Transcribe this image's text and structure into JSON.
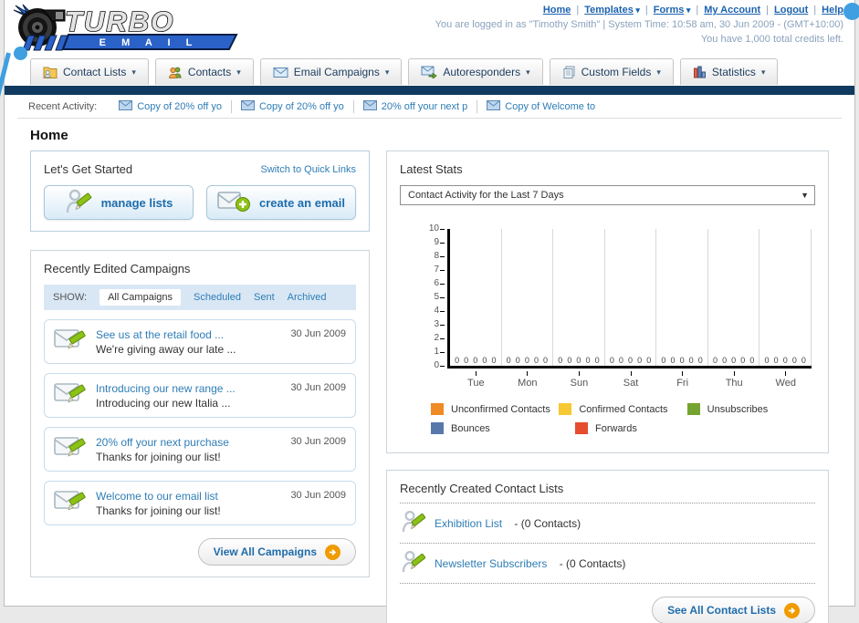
{
  "header": {
    "links": [
      {
        "label": "Home",
        "dropdown": false
      },
      {
        "label": "Templates",
        "dropdown": true
      },
      {
        "label": "Forms",
        "dropdown": true
      },
      {
        "label": "My Account",
        "dropdown": false
      },
      {
        "label": "Logout",
        "dropdown": false
      },
      {
        "label": "Help",
        "dropdown": false
      }
    ],
    "login_line1": "You are logged in as \"Timothy Smith\" | System Time: 10:58 am, 30 Jun 2009 - (GMT+10:00)",
    "login_line2": "You have 1,000 total credits left.",
    "logo_word": "TURBO",
    "logo_sub": "E M A I L"
  },
  "nav": {
    "tabs": [
      {
        "label": "Contact Lists",
        "icon": "folder-icon"
      },
      {
        "label": "Contacts",
        "icon": "contacts-icon"
      },
      {
        "label": "Email Campaigns",
        "icon": "envelope-icon"
      },
      {
        "label": "Autoresponders",
        "icon": "autoresponder-icon"
      },
      {
        "label": "Custom Fields",
        "icon": "fields-icon"
      },
      {
        "label": "Statistics",
        "icon": "stats-icon"
      }
    ]
  },
  "recent_activity": {
    "label": "Recent Activity:",
    "items": [
      {
        "label": "Copy of 20% off yo"
      },
      {
        "label": "Copy of 20% off yo"
      },
      {
        "label": "20% off your next p"
      },
      {
        "label": "Copy of Welcome to"
      }
    ]
  },
  "page_title": "Home",
  "get_started": {
    "title": "Let's Get Started",
    "switch_link": "Switch to Quick Links",
    "buttons": [
      {
        "label": "manage lists",
        "icon": "manage-lists-icon"
      },
      {
        "label": "create an email",
        "icon": "create-email-icon"
      }
    ]
  },
  "campaigns": {
    "title": "Recently Edited Campaigns",
    "show_label": "SHOW:",
    "filters": [
      {
        "label": "All Campaigns",
        "active": true
      },
      {
        "label": "Scheduled",
        "active": false
      },
      {
        "label": "Sent",
        "active": false
      },
      {
        "label": "Archived",
        "active": false
      }
    ],
    "items": [
      {
        "title": "See us at the retail food ...",
        "subtitle": "We're giving away our late ...",
        "date": "30 Jun 2009"
      },
      {
        "title": "Introducing our new range ...",
        "subtitle": "Introducing our new Italia ...",
        "date": "30 Jun 2009"
      },
      {
        "title": "20% off your next purchase",
        "subtitle": "Thanks for joining our list!",
        "date": "30 Jun 2009"
      },
      {
        "title": "Welcome to our email list",
        "subtitle": "Thanks for joining our list!",
        "date": "30 Jun 2009"
      }
    ],
    "view_all": "View All Campaigns"
  },
  "stats": {
    "title": "Latest Stats",
    "period": "Contact Activity for the Last 7 Days"
  },
  "chart_data": {
    "type": "bar",
    "title": "Contact Activity for the Last 7 Days",
    "categories": [
      "Tue",
      "Mon",
      "Sun",
      "Sat",
      "Fri",
      "Thu",
      "Wed"
    ],
    "series": [
      {
        "name": "Unconfirmed Contacts",
        "color": "#f08a24",
        "values": [
          0,
          0,
          0,
          0,
          0,
          0,
          0
        ]
      },
      {
        "name": "Confirmed Contacts",
        "color": "#f6c831",
        "values": [
          0,
          0,
          0,
          0,
          0,
          0,
          0
        ]
      },
      {
        "name": "Unsubscribes",
        "color": "#74a32f",
        "values": [
          0,
          0,
          0,
          0,
          0,
          0,
          0
        ]
      },
      {
        "name": "Bounces",
        "color": "#5878ac",
        "values": [
          0,
          0,
          0,
          0,
          0,
          0,
          0
        ]
      },
      {
        "name": "Forwards",
        "color": "#e64c2e",
        "values": [
          0,
          0,
          0,
          0,
          0,
          0,
          0
        ]
      }
    ],
    "ylim": [
      0,
      10
    ],
    "yticks": [
      0,
      1,
      2,
      3,
      4,
      5,
      6,
      7,
      8,
      9,
      10
    ],
    "grid": "vertical",
    "data_labels": true,
    "legend_position": "bottom"
  },
  "contact_lists": {
    "title": "Recently Created Contact Lists",
    "items": [
      {
        "name": "Exhibition List",
        "detail": "- (0 Contacts)"
      },
      {
        "name": "Newsletter Subscribers",
        "detail": "- (0 Contacts)"
      }
    ],
    "see_all": "See All Contact Lists"
  },
  "colors": {
    "navbar": "#103a60",
    "accent_link": "#2e7db5",
    "header_link": "#1c63b0",
    "decor_blue": "#3f9fe0",
    "filter_bar_bg": "#d9e7f5",
    "button_text": "#1e6cab",
    "arrow_circle": "#f09b00"
  }
}
